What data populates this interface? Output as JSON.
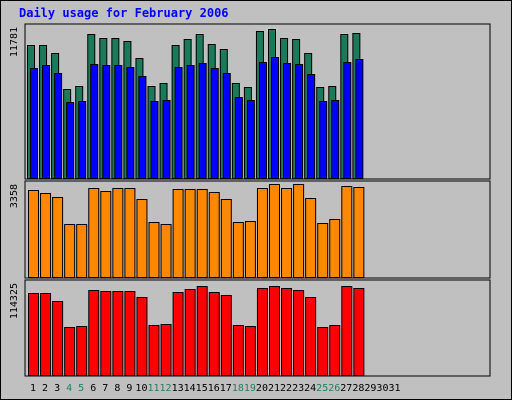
{
  "title": "Daily usage for February 2006",
  "chart_data": {
    "type": "bar",
    "categories": [
      "1",
      "2",
      "3",
      "4",
      "5",
      "6",
      "7",
      "8",
      "9",
      "10",
      "11",
      "12",
      "13",
      "14",
      "15",
      "16",
      "17",
      "18",
      "19",
      "20",
      "21",
      "22",
      "23",
      "24",
      "25",
      "26",
      "27",
      "28",
      "29",
      "30",
      "31"
    ],
    "weekend_days": [
      "4",
      "5",
      "11",
      "12",
      "18",
      "19",
      "25",
      "26"
    ],
    "panels": [
      {
        "max_label": "11781",
        "ylim": [
          0,
          11781
        ],
        "series": [
          {
            "color": "#1a7a5a",
            "values": [
              10500,
              10500,
              9900,
              7000,
              7300,
              11400,
              11100,
              11100,
              10800,
              9500,
              7300,
              7500,
              10500,
              11000,
              11400,
              10600,
              10200,
              7500,
              7200,
              11600,
              11781,
              11100,
              11000,
              9900,
              7200,
              7300,
              11400,
              11500,
              0,
              0,
              0
            ]
          },
          {
            "color": "#0000ff",
            "values": [
              8700,
              8900,
              8300,
              6000,
              6100,
              9000,
              8900,
              8900,
              8800,
              8100,
              6100,
              6200,
              8800,
              8900,
              9100,
              8700,
              8300,
              6400,
              6200,
              9200,
              9600,
              9100,
              9000,
              8200,
              6100,
              6200,
              9200,
              9400,
              0,
              0,
              0
            ]
          }
        ]
      },
      {
        "max_label": "3358",
        "ylim": [
          0,
          3358
        ],
        "series": [
          {
            "color": "#ff8800",
            "values": [
              3150,
              3050,
              2880,
              1900,
              1910,
              3200,
              3100,
              3200,
              3200,
              2800,
              1970,
              1920,
              3190,
              3170,
              3190,
              3060,
              2810,
              1990,
              2020,
              3200,
              3358,
              3230,
              3358,
              2850,
              1960,
              2100,
              3300,
              3250,
              0,
              0,
              0
            ]
          }
        ]
      },
      {
        "max_label": "114325",
        "ylim": [
          0,
          114325
        ],
        "series": [
          {
            "color": "#ff0000",
            "values": [
              102000,
              102500,
              92500,
              59800,
              61000,
              106000,
              105000,
              105000,
              104500,
              97000,
              62500,
              63500,
              103000,
              107000,
              110000,
              103000,
              99000,
              62500,
              61500,
              108500,
              111000,
              108500,
              106000,
              96500,
              59500,
              62000,
              110000,
              108000,
              0,
              0,
              0
            ]
          }
        ]
      }
    ],
    "xlabel": "",
    "ylabel": ""
  }
}
